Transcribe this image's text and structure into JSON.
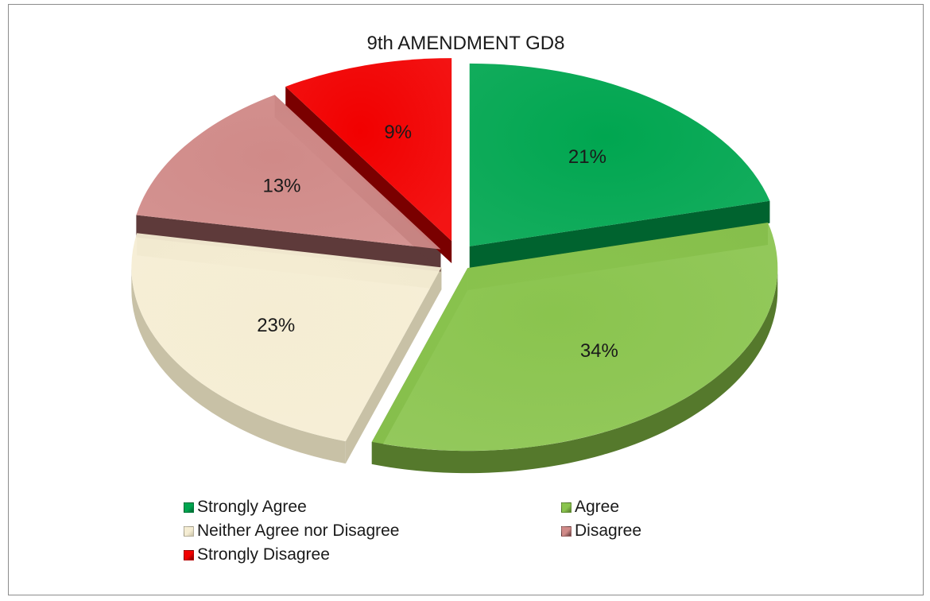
{
  "chart_data": {
    "type": "pie",
    "title": "9th AMENDMENT  GD8",
    "slices": [
      {
        "label": "Strongly Agree",
        "value": 21,
        "display": "21%",
        "color": "#00a650",
        "side_color": "#00632f"
      },
      {
        "label": "Agree",
        "value": 34,
        "display": "34%",
        "color": "#8ac44e",
        "side_color": "#55792c"
      },
      {
        "label": "Neither Agree nor Disagree",
        "value": 23,
        "display": "23%",
        "color": "#f5edd3",
        "side_color": "#c8c1a6"
      },
      {
        "label": "Disagree",
        "value": 13,
        "display": "13%",
        "color": "#d08a88",
        "side_color": "#5e3a3a"
      },
      {
        "label": "Strongly Disagree",
        "value": 9,
        "display": "9%",
        "color": "#f20000",
        "side_color": "#7a0000"
      }
    ],
    "legend_position": "bottom",
    "style": "3d-exploded"
  }
}
